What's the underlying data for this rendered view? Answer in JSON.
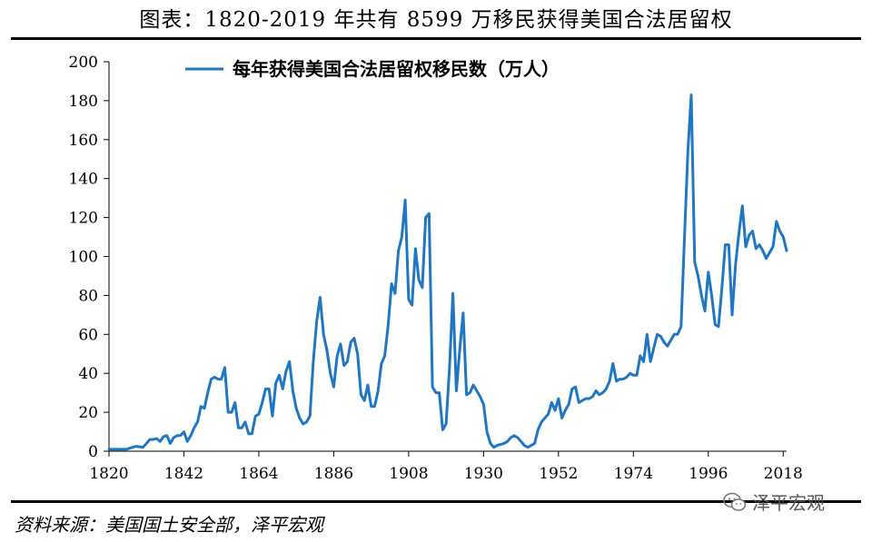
{
  "title": "图表：1820-2019 年共有 8599 万移民获得美国合法居留权",
  "source": "资料来源：美国国土安全部，泽平宏观",
  "watermark": {
    "text": "泽平宏观",
    "icon": "wechat-icon"
  },
  "chart_data": {
    "type": "line",
    "title": "",
    "xlabel": "",
    "ylabel": "",
    "xlim": [
      1820,
      2019
    ],
    "ylim": [
      0,
      200
    ],
    "yticks": [
      0,
      20,
      40,
      60,
      80,
      100,
      120,
      140,
      160,
      180,
      200
    ],
    "xticks": [
      1820,
      1842,
      1864,
      1886,
      1908,
      1930,
      1952,
      1974,
      1996,
      2018
    ],
    "grid": false,
    "legend_position": "top",
    "series": [
      {
        "name": "每年获得美国合法居留权移民数（万人）",
        "color": "#1f77c4",
        "points": [
          [
            1820,
            1
          ],
          [
            1822,
            1
          ],
          [
            1825,
            1
          ],
          [
            1828,
            2.5
          ],
          [
            1830,
            2
          ],
          [
            1832,
            6
          ],
          [
            1833,
            6
          ],
          [
            1834,
            6.5
          ],
          [
            1835,
            5
          ],
          [
            1836,
            7.5
          ],
          [
            1837,
            8
          ],
          [
            1838,
            4
          ],
          [
            1839,
            7
          ],
          [
            1840,
            8
          ],
          [
            1841,
            8
          ],
          [
            1842,
            10
          ],
          [
            1843,
            5
          ],
          [
            1844,
            8
          ],
          [
            1845,
            12
          ],
          [
            1846,
            15
          ],
          [
            1847,
            23
          ],
          [
            1848,
            22
          ],
          [
            1849,
            30
          ],
          [
            1850,
            37
          ],
          [
            1851,
            38
          ],
          [
            1852,
            37
          ],
          [
            1853,
            37
          ],
          [
            1854,
            43
          ],
          [
            1855,
            20
          ],
          [
            1856,
            20
          ],
          [
            1857,
            25
          ],
          [
            1858,
            12
          ],
          [
            1859,
            12
          ],
          [
            1860,
            15
          ],
          [
            1861,
            9
          ],
          [
            1862,
            9
          ],
          [
            1863,
            18
          ],
          [
            1864,
            19
          ],
          [
            1865,
            25
          ],
          [
            1866,
            32
          ],
          [
            1867,
            32
          ],
          [
            1868,
            18
          ],
          [
            1869,
            35
          ],
          [
            1870,
            39
          ],
          [
            1871,
            32
          ],
          [
            1872,
            41
          ],
          [
            1873,
            46
          ],
          [
            1874,
            31
          ],
          [
            1875,
            22
          ],
          [
            1876,
            17
          ],
          [
            1877,
            14
          ],
          [
            1878,
            15
          ],
          [
            1879,
            18
          ],
          [
            1880,
            46
          ],
          [
            1881,
            67
          ],
          [
            1882,
            79
          ],
          [
            1883,
            60
          ],
          [
            1884,
            52
          ],
          [
            1885,
            40
          ],
          [
            1886,
            33
          ],
          [
            1887,
            49
          ],
          [
            1888,
            55
          ],
          [
            1889,
            44
          ],
          [
            1890,
            46
          ],
          [
            1891,
            56
          ],
          [
            1892,
            58
          ],
          [
            1893,
            50
          ],
          [
            1894,
            29
          ],
          [
            1895,
            26
          ],
          [
            1896,
            34
          ],
          [
            1897,
            23
          ],
          [
            1898,
            23
          ],
          [
            1899,
            31
          ],
          [
            1900,
            45
          ],
          [
            1901,
            49
          ],
          [
            1902,
            65
          ],
          [
            1903,
            86
          ],
          [
            1904,
            81
          ],
          [
            1905,
            103
          ],
          [
            1906,
            110
          ],
          [
            1907,
            129
          ],
          [
            1908,
            78
          ],
          [
            1909,
            75
          ],
          [
            1910,
            104
          ],
          [
            1911,
            88
          ],
          [
            1912,
            84
          ],
          [
            1913,
            120
          ],
          [
            1914,
            122
          ],
          [
            1915,
            33
          ],
          [
            1916,
            30
          ],
          [
            1917,
            30
          ],
          [
            1918,
            11
          ],
          [
            1919,
            14
          ],
          [
            1920,
            43
          ],
          [
            1921,
            81
          ],
          [
            1922,
            31
          ],
          [
            1923,
            52
          ],
          [
            1924,
            71
          ],
          [
            1925,
            29
          ],
          [
            1926,
            30
          ],
          [
            1927,
            34
          ],
          [
            1928,
            31
          ],
          [
            1929,
            28
          ],
          [
            1930,
            24
          ],
          [
            1931,
            10
          ],
          [
            1932,
            4
          ],
          [
            1933,
            2
          ],
          [
            1934,
            3
          ],
          [
            1935,
            3.5
          ],
          [
            1936,
            4
          ],
          [
            1937,
            5
          ],
          [
            1938,
            7
          ],
          [
            1939,
            8
          ],
          [
            1940,
            7
          ],
          [
            1941,
            5
          ],
          [
            1942,
            3
          ],
          [
            1943,
            2
          ],
          [
            1944,
            3
          ],
          [
            1945,
            4
          ],
          [
            1946,
            11
          ],
          [
            1947,
            15
          ],
          [
            1948,
            17
          ],
          [
            1949,
            19
          ],
          [
            1950,
            25
          ],
          [
            1951,
            21
          ],
          [
            1952,
            27
          ],
          [
            1953,
            17
          ],
          [
            1954,
            21
          ],
          [
            1955,
            24
          ],
          [
            1956,
            32
          ],
          [
            1957,
            33
          ],
          [
            1958,
            25
          ],
          [
            1959,
            26
          ],
          [
            1960,
            27
          ],
          [
            1961,
            27
          ],
          [
            1962,
            28
          ],
          [
            1963,
            31
          ],
          [
            1964,
            29
          ],
          [
            1965,
            30
          ],
          [
            1966,
            32
          ],
          [
            1967,
            36
          ],
          [
            1968,
            45
          ],
          [
            1969,
            36
          ],
          [
            1970,
            37
          ],
          [
            1971,
            37
          ],
          [
            1972,
            38
          ],
          [
            1973,
            40
          ],
          [
            1974,
            39
          ],
          [
            1975,
            39
          ],
          [
            1976,
            49
          ],
          [
            1977,
            46
          ],
          [
            1978,
            60
          ],
          [
            1979,
            46
          ],
          [
            1980,
            53
          ],
          [
            1981,
            60
          ],
          [
            1982,
            59
          ],
          [
            1983,
            56
          ],
          [
            1984,
            54
          ],
          [
            1985,
            57
          ],
          [
            1986,
            60
          ],
          [
            1987,
            60
          ],
          [
            1988,
            64
          ],
          [
            1989,
            109
          ],
          [
            1990,
            154
          ],
          [
            1991,
            183
          ],
          [
            1992,
            97
          ],
          [
            1993,
            90
          ],
          [
            1994,
            80
          ],
          [
            1995,
            72
          ],
          [
            1996,
            92
          ],
          [
            1997,
            80
          ],
          [
            1998,
            65
          ],
          [
            1999,
            64
          ],
          [
            2000,
            84
          ],
          [
            2001,
            106
          ],
          [
            2002,
            106
          ],
          [
            2003,
            70
          ],
          [
            2004,
            96
          ],
          [
            2005,
            112
          ],
          [
            2006,
            126
          ],
          [
            2007,
            105
          ],
          [
            2008,
            111
          ],
          [
            2009,
            113
          ],
          [
            2010,
            104
          ],
          [
            2011,
            106
          ],
          [
            2012,
            103
          ],
          [
            2013,
            99
          ],
          [
            2014,
            102
          ],
          [
            2015,
            105
          ],
          [
            2016,
            118
          ],
          [
            2017,
            113
          ],
          [
            2018,
            110
          ],
          [
            2019,
            103
          ]
        ]
      }
    ]
  }
}
